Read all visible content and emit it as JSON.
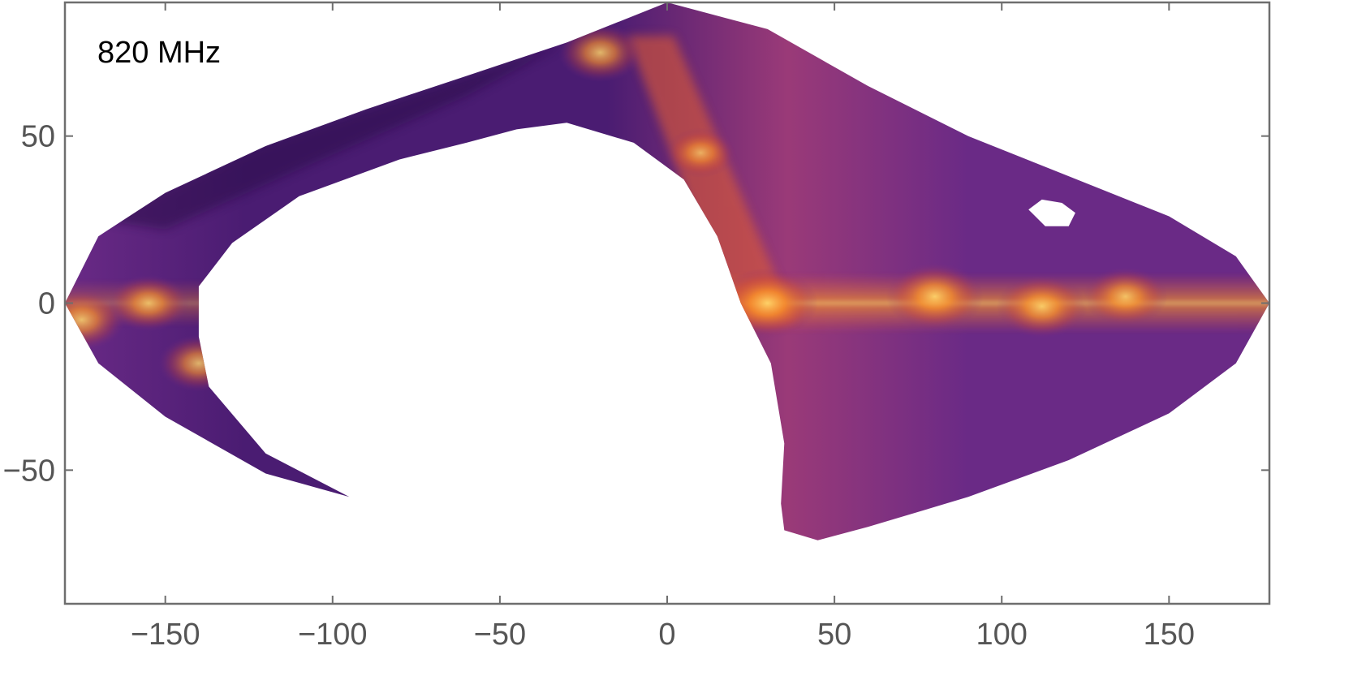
{
  "chart_data": {
    "type": "heatmap",
    "title": "",
    "annotation": "820 MHz",
    "xlabel": "",
    "ylabel": "",
    "xlim": [
      -180,
      180
    ],
    "ylim": [
      -90,
      90
    ],
    "x_ticks": [
      -150,
      -100,
      -50,
      0,
      50,
      100,
      150
    ],
    "y_ticks": [
      -50,
      0,
      50
    ],
    "x_tick_labels": [
      "−150",
      "−100",
      "−50",
      "0",
      "50",
      "100",
      "150"
    ],
    "y_tick_labels": [
      "−50",
      "0",
      "50"
    ],
    "grid": false,
    "legend": "none",
    "colormap": [
      "#2a0d4a",
      "#4a1c72",
      "#6a2a86",
      "#9a3a78",
      "#d55a3a",
      "#f58a20",
      "#fdb84a"
    ],
    "coverage_outline": [
      [
        -180,
        0
      ],
      [
        -170,
        20
      ],
      [
        -150,
        33
      ],
      [
        -120,
        47
      ],
      [
        -90,
        58
      ],
      [
        -60,
        68
      ],
      [
        -30,
        78
      ],
      [
        0,
        90
      ],
      [
        30,
        82
      ],
      [
        60,
        65
      ],
      [
        90,
        50
      ],
      [
        120,
        38
      ],
      [
        150,
        26
      ],
      [
        170,
        14
      ],
      [
        180,
        0
      ],
      [
        170,
        -18
      ],
      [
        150,
        -33
      ],
      [
        120,
        -47
      ],
      [
        90,
        -58
      ],
      [
        60,
        -67
      ],
      [
        45,
        -71
      ],
      [
        35,
        -68
      ],
      [
        34,
        -60
      ],
      [
        35,
        -42
      ],
      [
        31,
        -18
      ],
      [
        22,
        0
      ],
      [
        15,
        20
      ],
      [
        5,
        37
      ],
      [
        -10,
        48
      ],
      [
        -30,
        54
      ],
      [
        -45,
        52
      ],
      [
        -60,
        48
      ],
      [
        -80,
        43
      ],
      [
        -110,
        32
      ],
      [
        -130,
        18
      ],
      [
        -140,
        5
      ],
      [
        -140,
        -10
      ],
      [
        -137,
        -25
      ],
      [
        -120,
        -45
      ],
      [
        -95,
        -58
      ],
      [
        -120,
        -51
      ],
      [
        -150,
        -34
      ],
      [
        -170,
        -18
      ]
    ],
    "coverage_holes": [
      [
        [
          113,
          23
        ],
        [
          108,
          28
        ],
        [
          112,
          31
        ],
        [
          118,
          30
        ],
        [
          122,
          27
        ],
        [
          120,
          23
        ]
      ]
    ],
    "bright_regions": [
      {
        "x": 30,
        "y": 0,
        "intensity": 1.0
      },
      {
        "x": 80,
        "y": 2,
        "intensity": 0.95
      },
      {
        "x": 112,
        "y": -1,
        "intensity": 0.85
      },
      {
        "x": 137,
        "y": 2,
        "intensity": 0.75
      },
      {
        "x": -175,
        "y": -5,
        "intensity": 0.8
      },
      {
        "x": -155,
        "y": 0,
        "intensity": 0.7
      },
      {
        "x": -140,
        "y": -18,
        "intensity": 0.7
      },
      {
        "x": -20,
        "y": 75,
        "intensity": 0.75
      },
      {
        "x": 10,
        "y": 45,
        "intensity": 0.55
      }
    ]
  }
}
